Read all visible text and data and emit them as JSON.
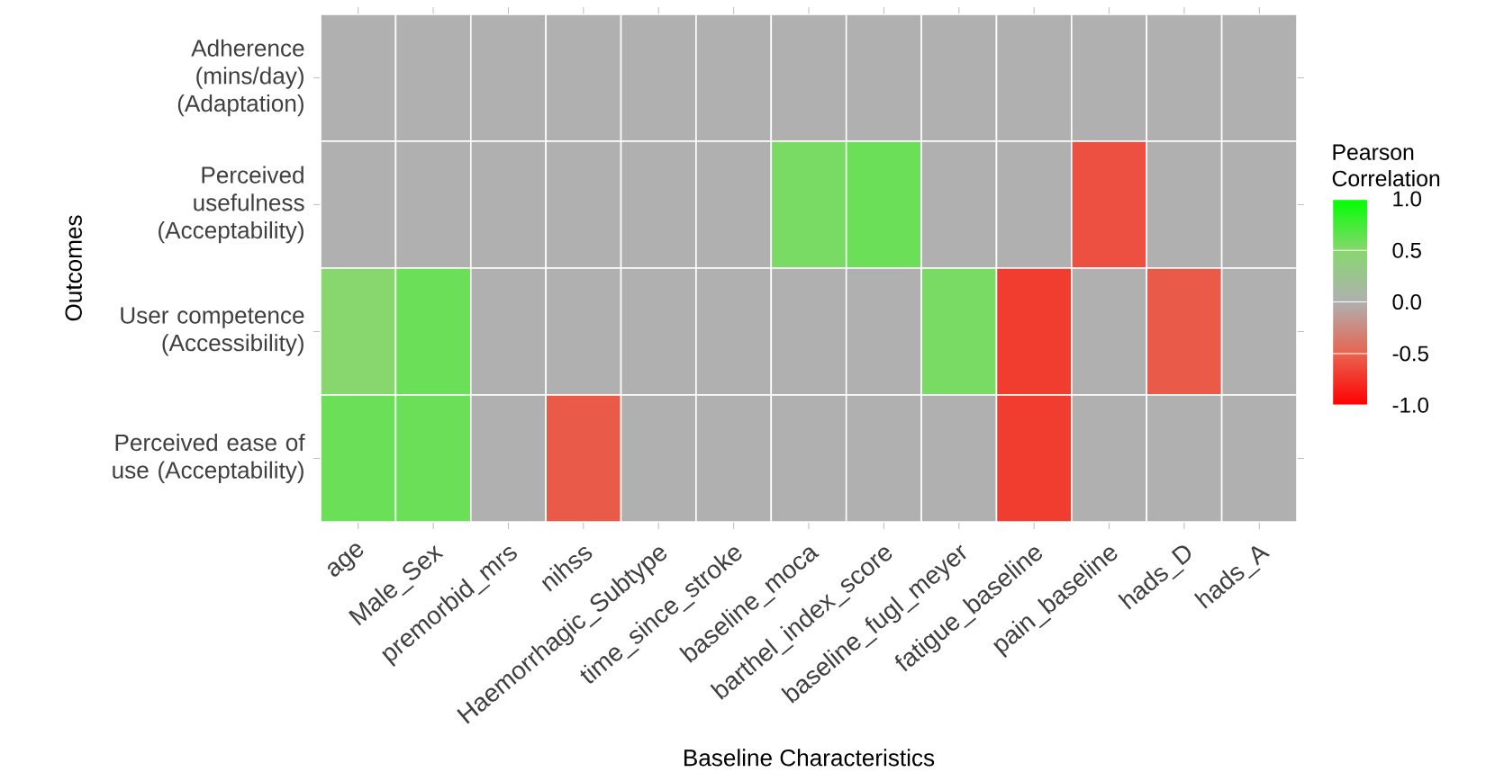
{
  "chart_data": {
    "type": "heatmap",
    "xlabel": "Baseline  Characteristics",
    "ylabel": "Outcomes",
    "clabel": "Pearson Correlation",
    "categories": [
      "age",
      "Male_Sex",
      "premorbid_mrs",
      "nihss",
      "Haemorrhagic_Subtype",
      "time_since_stroke",
      "baseline_moca",
      "barthel_index_score",
      "baseline_fugl_meyer",
      "fatigue_baseline",
      "pain_baseline",
      "hads_D",
      "hads_A"
    ],
    "y_categories": [
      "Adherence (mins/day) (Adaptation)",
      "Perceived usefulness (Acceptability)",
      "User competence (Accessibility)",
      "Perceived ease of use (Acceptability)"
    ],
    "cells": [
      [
        0,
        0,
        0,
        0,
        0,
        0,
        0,
        0,
        0,
        0,
        0,
        0,
        0
      ],
      [
        0,
        0,
        0,
        0,
        0,
        0,
        0.55,
        0.6,
        0,
        0,
        -0.6,
        0,
        0
      ],
      [
        0.5,
        0.6,
        0,
        0,
        0,
        0,
        0,
        0,
        0.55,
        -0.7,
        0,
        -0.55,
        0
      ],
      [
        0.6,
        0.6,
        0,
        -0.55,
        0,
        0,
        0,
        0,
        0,
        -0.7,
        0,
        0,
        0
      ]
    ],
    "clim": [
      -1,
      1
    ],
    "cticks": [
      {
        "value": -1,
        "label": "-1.0"
      },
      {
        "value": -0.5,
        "label": "-0.5"
      },
      {
        "value": 0,
        "label": "0.0"
      },
      {
        "value": 0.5,
        "label": "0.5"
      },
      {
        "value": 1,
        "label": "1.0"
      }
    ]
  }
}
